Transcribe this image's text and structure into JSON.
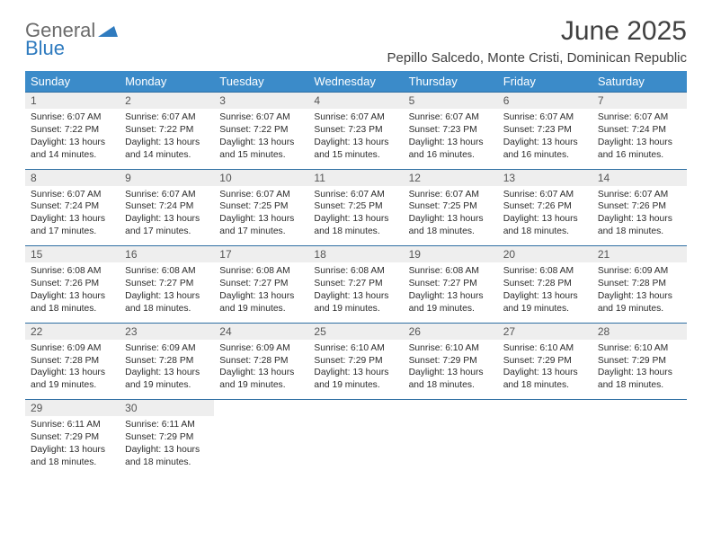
{
  "logo": {
    "line1": "General",
    "line2": "Blue"
  },
  "title": "June 2025",
  "location": "Pepillo Salcedo, Monte Cristi, Dominican Republic",
  "colors": {
    "header_bg": "#3b8bc9",
    "header_text": "#ffffff",
    "daynum_bg": "#eeeeee",
    "daynum_border": "#2f6fa3",
    "body_text": "#2b2b2b",
    "logo_gray": "#6b6b6b",
    "logo_blue": "#2f7bbf"
  },
  "days_of_week": [
    "Sunday",
    "Monday",
    "Tuesday",
    "Wednesday",
    "Thursday",
    "Friday",
    "Saturday"
  ],
  "weeks": [
    [
      {
        "n": "1",
        "sr": "Sunrise: 6:07 AM",
        "ss": "Sunset: 7:22 PM",
        "d1": "Daylight: 13 hours",
        "d2": "and 14 minutes."
      },
      {
        "n": "2",
        "sr": "Sunrise: 6:07 AM",
        "ss": "Sunset: 7:22 PM",
        "d1": "Daylight: 13 hours",
        "d2": "and 14 minutes."
      },
      {
        "n": "3",
        "sr": "Sunrise: 6:07 AM",
        "ss": "Sunset: 7:22 PM",
        "d1": "Daylight: 13 hours",
        "d2": "and 15 minutes."
      },
      {
        "n": "4",
        "sr": "Sunrise: 6:07 AM",
        "ss": "Sunset: 7:23 PM",
        "d1": "Daylight: 13 hours",
        "d2": "and 15 minutes."
      },
      {
        "n": "5",
        "sr": "Sunrise: 6:07 AM",
        "ss": "Sunset: 7:23 PM",
        "d1": "Daylight: 13 hours",
        "d2": "and 16 minutes."
      },
      {
        "n": "6",
        "sr": "Sunrise: 6:07 AM",
        "ss": "Sunset: 7:23 PM",
        "d1": "Daylight: 13 hours",
        "d2": "and 16 minutes."
      },
      {
        "n": "7",
        "sr": "Sunrise: 6:07 AM",
        "ss": "Sunset: 7:24 PM",
        "d1": "Daylight: 13 hours",
        "d2": "and 16 minutes."
      }
    ],
    [
      {
        "n": "8",
        "sr": "Sunrise: 6:07 AM",
        "ss": "Sunset: 7:24 PM",
        "d1": "Daylight: 13 hours",
        "d2": "and 17 minutes."
      },
      {
        "n": "9",
        "sr": "Sunrise: 6:07 AM",
        "ss": "Sunset: 7:24 PM",
        "d1": "Daylight: 13 hours",
        "d2": "and 17 minutes."
      },
      {
        "n": "10",
        "sr": "Sunrise: 6:07 AM",
        "ss": "Sunset: 7:25 PM",
        "d1": "Daylight: 13 hours",
        "d2": "and 17 minutes."
      },
      {
        "n": "11",
        "sr": "Sunrise: 6:07 AM",
        "ss": "Sunset: 7:25 PM",
        "d1": "Daylight: 13 hours",
        "d2": "and 18 minutes."
      },
      {
        "n": "12",
        "sr": "Sunrise: 6:07 AM",
        "ss": "Sunset: 7:25 PM",
        "d1": "Daylight: 13 hours",
        "d2": "and 18 minutes."
      },
      {
        "n": "13",
        "sr": "Sunrise: 6:07 AM",
        "ss": "Sunset: 7:26 PM",
        "d1": "Daylight: 13 hours",
        "d2": "and 18 minutes."
      },
      {
        "n": "14",
        "sr": "Sunrise: 6:07 AM",
        "ss": "Sunset: 7:26 PM",
        "d1": "Daylight: 13 hours",
        "d2": "and 18 minutes."
      }
    ],
    [
      {
        "n": "15",
        "sr": "Sunrise: 6:08 AM",
        "ss": "Sunset: 7:26 PM",
        "d1": "Daylight: 13 hours",
        "d2": "and 18 minutes."
      },
      {
        "n": "16",
        "sr": "Sunrise: 6:08 AM",
        "ss": "Sunset: 7:27 PM",
        "d1": "Daylight: 13 hours",
        "d2": "and 18 minutes."
      },
      {
        "n": "17",
        "sr": "Sunrise: 6:08 AM",
        "ss": "Sunset: 7:27 PM",
        "d1": "Daylight: 13 hours",
        "d2": "and 19 minutes."
      },
      {
        "n": "18",
        "sr": "Sunrise: 6:08 AM",
        "ss": "Sunset: 7:27 PM",
        "d1": "Daylight: 13 hours",
        "d2": "and 19 minutes."
      },
      {
        "n": "19",
        "sr": "Sunrise: 6:08 AM",
        "ss": "Sunset: 7:27 PM",
        "d1": "Daylight: 13 hours",
        "d2": "and 19 minutes."
      },
      {
        "n": "20",
        "sr": "Sunrise: 6:08 AM",
        "ss": "Sunset: 7:28 PM",
        "d1": "Daylight: 13 hours",
        "d2": "and 19 minutes."
      },
      {
        "n": "21",
        "sr": "Sunrise: 6:09 AM",
        "ss": "Sunset: 7:28 PM",
        "d1": "Daylight: 13 hours",
        "d2": "and 19 minutes."
      }
    ],
    [
      {
        "n": "22",
        "sr": "Sunrise: 6:09 AM",
        "ss": "Sunset: 7:28 PM",
        "d1": "Daylight: 13 hours",
        "d2": "and 19 minutes."
      },
      {
        "n": "23",
        "sr": "Sunrise: 6:09 AM",
        "ss": "Sunset: 7:28 PM",
        "d1": "Daylight: 13 hours",
        "d2": "and 19 minutes."
      },
      {
        "n": "24",
        "sr": "Sunrise: 6:09 AM",
        "ss": "Sunset: 7:28 PM",
        "d1": "Daylight: 13 hours",
        "d2": "and 19 minutes."
      },
      {
        "n": "25",
        "sr": "Sunrise: 6:10 AM",
        "ss": "Sunset: 7:29 PM",
        "d1": "Daylight: 13 hours",
        "d2": "and 19 minutes."
      },
      {
        "n": "26",
        "sr": "Sunrise: 6:10 AM",
        "ss": "Sunset: 7:29 PM",
        "d1": "Daylight: 13 hours",
        "d2": "and 18 minutes."
      },
      {
        "n": "27",
        "sr": "Sunrise: 6:10 AM",
        "ss": "Sunset: 7:29 PM",
        "d1": "Daylight: 13 hours",
        "d2": "and 18 minutes."
      },
      {
        "n": "28",
        "sr": "Sunrise: 6:10 AM",
        "ss": "Sunset: 7:29 PM",
        "d1": "Daylight: 13 hours",
        "d2": "and 18 minutes."
      }
    ],
    [
      {
        "n": "29",
        "sr": "Sunrise: 6:11 AM",
        "ss": "Sunset: 7:29 PM",
        "d1": "Daylight: 13 hours",
        "d2": "and 18 minutes."
      },
      {
        "n": "30",
        "sr": "Sunrise: 6:11 AM",
        "ss": "Sunset: 7:29 PM",
        "d1": "Daylight: 13 hours",
        "d2": "and 18 minutes."
      },
      null,
      null,
      null,
      null,
      null
    ]
  ]
}
